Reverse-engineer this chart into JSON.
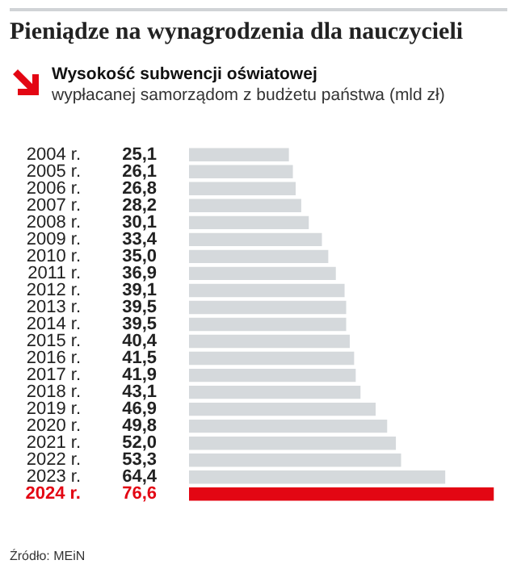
{
  "chart_data": {
    "type": "bar",
    "orientation": "horizontal",
    "title": "Pieniądze na wynagrodzenia dla nauczycieli",
    "subtitle": "Wysokość subwencji oświatowej\nwypłacanej samorządom z budżetu państwa (mld zł)",
    "categories": [
      "2004 r.",
      "2005 r.",
      "2006 r.",
      "2007 r.",
      "2008 r.",
      "2009 r.",
      "2010 r.",
      "2011 r.",
      "2012 r.",
      "2013 r.",
      "2014 r.",
      "2015 r.",
      "2016 r.",
      "2017 r.",
      "2018 r.",
      "2019 r.",
      "2020 r.",
      "2021 r.",
      "2022 r.",
      "2023 r.",
      "2024 r."
    ],
    "values": [
      25.1,
      26.1,
      26.8,
      28.2,
      30.1,
      33.4,
      35.0,
      36.9,
      39.1,
      39.5,
      39.5,
      40.4,
      41.5,
      41.9,
      43.1,
      46.9,
      49.8,
      52.0,
      53.3,
      64.4,
      76.6
    ],
    "value_labels": [
      "25,1",
      "26,1",
      "26,8",
      "28,2",
      "30,1",
      "33,4",
      "35,0",
      "36,9",
      "39,1",
      "39,5",
      "39,5",
      "40,4",
      "41,5",
      "41,9",
      "43,1",
      "46,9",
      "49,8",
      "52,0",
      "53,3",
      "64,4",
      "76,6"
    ],
    "colors": [
      "#d5d9dc",
      "#d5d9dc",
      "#d5d9dc",
      "#d5d9dc",
      "#d5d9dc",
      "#d5d9dc",
      "#d5d9dc",
      "#d5d9dc",
      "#d5d9dc",
      "#d5d9dc",
      "#d5d9dc",
      "#d5d9dc",
      "#d5d9dc",
      "#d5d9dc",
      "#d5d9dc",
      "#d5d9dc",
      "#d5d9dc",
      "#d5d9dc",
      "#d5d9dc",
      "#d5d9dc",
      "#e30613"
    ],
    "legend": false,
    "annotations": [
      "Źródło: MEiN"
    ]
  }
}
